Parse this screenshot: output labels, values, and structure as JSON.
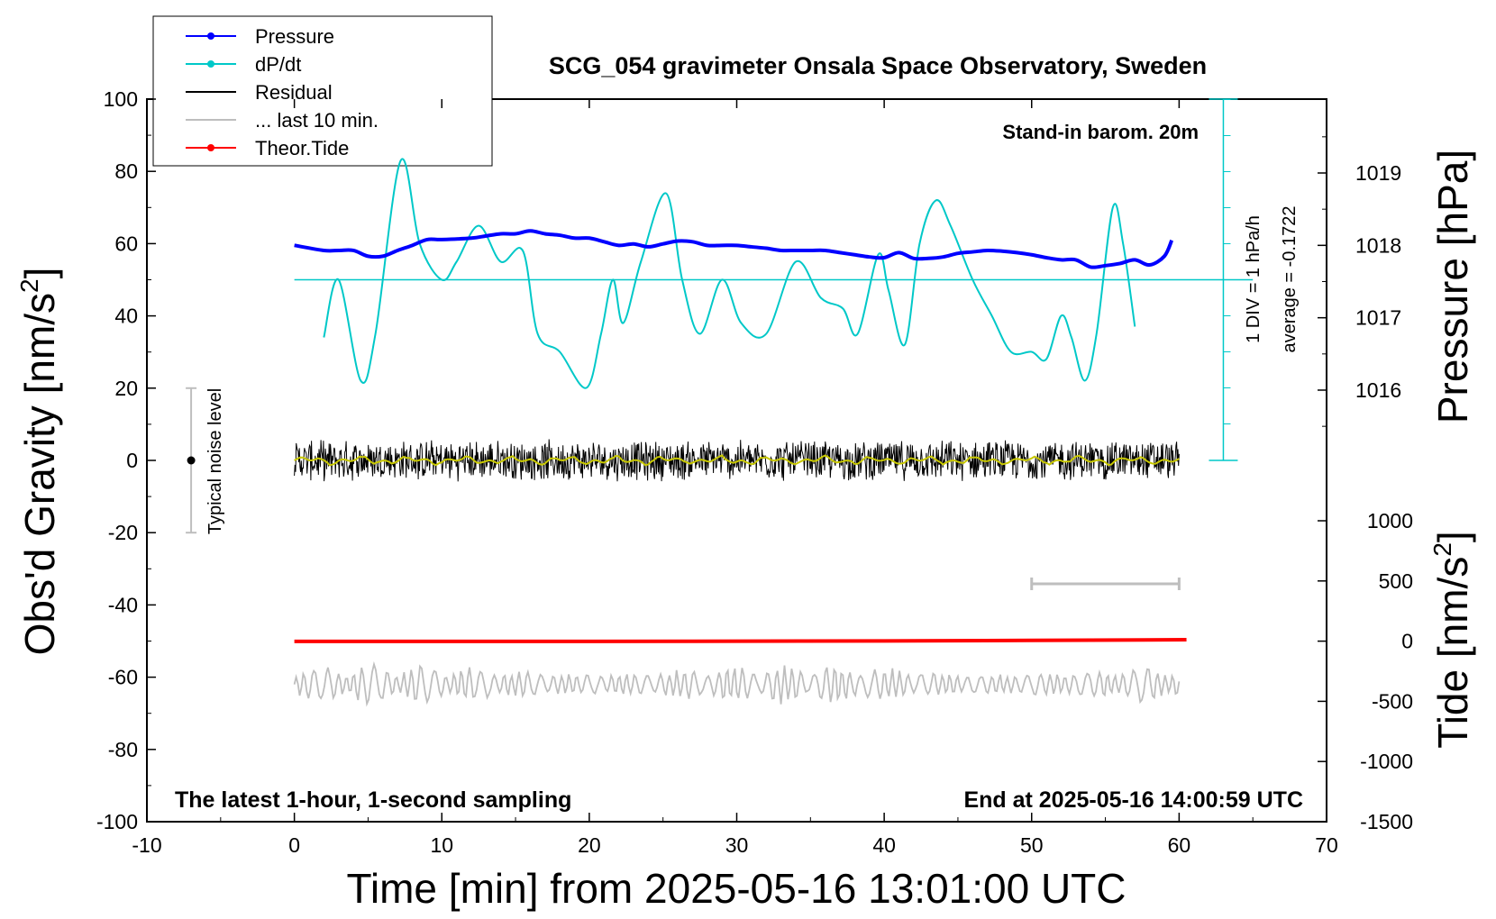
{
  "chart_data": {
    "type": "line",
    "title": "SCG_054 gravimeter Onsala Space Observatory, Sweden",
    "xlabel": "Time [min] from 2025-05-16 13:01:00 UTC",
    "ylabel_left": "Obs'd Gravity [nm/s",
    "ylabel_left_sup": "2",
    "ylabel_left_end": "]",
    "ylabel_right_top": "Pressure [hPa]",
    "ylabel_right_bottom": "Tide [nm/s",
    "ylabel_right_bottom_sup": "2",
    "ylabel_right_bottom_end": "]",
    "xlim": [
      -10,
      70
    ],
    "ylim_left": [
      -100,
      100
    ],
    "pressure_axis_range": [
      1015.0,
      1020.0
    ],
    "tide_axis_range": [
      -1500,
      1000
    ],
    "x_ticks": [
      "-10",
      "0",
      "10",
      "20",
      "30",
      "40",
      "50",
      "60",
      "70"
    ],
    "y_left_ticks": [
      "100",
      "80",
      "60",
      "40",
      "20",
      "0",
      "-20",
      "-40",
      "-60",
      "-80",
      "-100"
    ],
    "pressure_ticks": [
      "1019",
      "1018",
      "1017",
      "1016"
    ],
    "tide_ticks": [
      "1000",
      "500",
      "0",
      "-500",
      "-1000",
      "-1500"
    ],
    "legend": [
      {
        "label": "Pressure",
        "color": "#0000ff",
        "marker": true
      },
      {
        "label": "dP/dt",
        "color": "#00c8c8",
        "marker": true
      },
      {
        "label": "Residual",
        "color": "#000000",
        "marker": false
      },
      {
        "label": "... last 10 min.",
        "color": "#bebebe",
        "marker": false
      },
      {
        "label": "Theor.Tide",
        "color": "#ff0000",
        "marker": true
      }
    ],
    "annotations": {
      "stand_in": "Stand-in barom. 20m",
      "div_label": "1 DIV = 1 hPa/h",
      "average_label": "average = -0.1722",
      "noise_label": "Typical noise level",
      "bottom_left": "The latest 1-hour, 1-second sampling",
      "bottom_right": "End at 2025-05-16 14:00:59 UTC"
    },
    "series": [
      {
        "name": "Pressure",
        "units": "hPa",
        "color": "#0000ff",
        "x": [
          0,
          2,
          3,
          4,
          5,
          6,
          7,
          8,
          9,
          10,
          12,
          13,
          14,
          15,
          16,
          17,
          18,
          19,
          20,
          21,
          22,
          23,
          24,
          25,
          26,
          27,
          28,
          29,
          30,
          31,
          32,
          33,
          34,
          35,
          36,
          37,
          38,
          39,
          40,
          41,
          42,
          43,
          44,
          45,
          46,
          47,
          48,
          49,
          50,
          51,
          52,
          53,
          54,
          55,
          56,
          57,
          58,
          59,
          59.5
        ],
        "y": [
          1018.0,
          1017.93,
          1017.93,
          1017.93,
          1017.85,
          1017.85,
          1017.93,
          1018.0,
          1018.08,
          1018.08,
          1018.1,
          1018.13,
          1018.16,
          1018.16,
          1018.2,
          1018.16,
          1018.14,
          1018.1,
          1018.1,
          1018.05,
          1018.0,
          1018.02,
          1017.98,
          1018.02,
          1018.06,
          1018.05,
          1018.0,
          1018.0,
          1018.0,
          1017.98,
          1017.96,
          1017.93,
          1017.93,
          1017.93,
          1017.93,
          1017.9,
          1017.87,
          1017.84,
          1017.83,
          1017.9,
          1017.82,
          1017.82,
          1017.84,
          1017.89,
          1017.91,
          1017.93,
          1017.92,
          1017.9,
          1017.87,
          1017.83,
          1017.8,
          1017.8,
          1017.7,
          1017.72,
          1017.75,
          1017.8,
          1017.73,
          1017.85,
          1018.07
        ]
      },
      {
        "name": "dP/dt",
        "units": "hPa/h",
        "color": "#00c8c8",
        "x": [
          2,
          3,
          4.5,
          5.5,
          7.2,
          8.5,
          10,
          11,
          12.5,
          14,
          15.5,
          16.5,
          18,
          19.8,
          20.8,
          21.6,
          22.3,
          23.5,
          25.2,
          26.3,
          27.5,
          29,
          30.3,
          32,
          34,
          35.7,
          37.2,
          38.2,
          39.6,
          40.3,
          41.4,
          42.4,
          43.5,
          44.5,
          46,
          47.3,
          48.6,
          50,
          51,
          52,
          52.7,
          53.6,
          54.4,
          55.5,
          56.2,
          57
        ],
        "y": [
          -1.6,
          0,
          -2.8,
          -1.5,
          3.3,
          1.0,
          0.0,
          0.5,
          1.5,
          0.5,
          0.8,
          -1.5,
          -2.0,
          -3.0,
          -1.5,
          0.0,
          -1.2,
          0.5,
          2.4,
          0.0,
          -1.5,
          0.0,
          -1.2,
          -1.5,
          0.5,
          -0.5,
          -0.8,
          -1.5,
          0.7,
          -0.3,
          -1.8,
          1.0,
          2.2,
          1.5,
          0.0,
          -1.0,
          -2.0,
          -2.0,
          -2.2,
          -1.0,
          -1.6,
          -2.8,
          -1.5,
          2.0,
          1.0,
          -1.3
        ]
      },
      {
        "name": "Residual",
        "units": "nm/s2",
        "color": "#000000",
        "x_range": [
          0,
          60
        ],
        "y_center": 0,
        "y_amplitude": 6
      },
      {
        "name": "Residual smoothed",
        "units": "nm/s2",
        "color": "#c8c800",
        "x_range": [
          0,
          60
        ],
        "y_center": 0,
        "y_amplitude": 1.5
      },
      {
        "name": "... last 10 min.",
        "units": "nm/s2",
        "color": "#bebebe",
        "x_range": [
          0,
          60
        ],
        "y_center": -62,
        "y_amplitude": 5
      },
      {
        "name": "Theor.Tide",
        "units": "nm/s2",
        "color": "#ff0000",
        "x": [
          0,
          20,
          40,
          50,
          60.5
        ],
        "y": [
          -2,
          -2,
          2,
          6,
          12
        ]
      }
    ],
    "grid": false,
    "legend_position": "top-left",
    "noise_bar": {
      "x": -7,
      "center": 0,
      "range": [
        -20,
        20
      ]
    },
    "scale_bar_x": [
      50,
      60
    ],
    "dpdt_div_scale": {
      "x": 63,
      "baseline_y": 50,
      "ticks_per_div": 1
    }
  }
}
